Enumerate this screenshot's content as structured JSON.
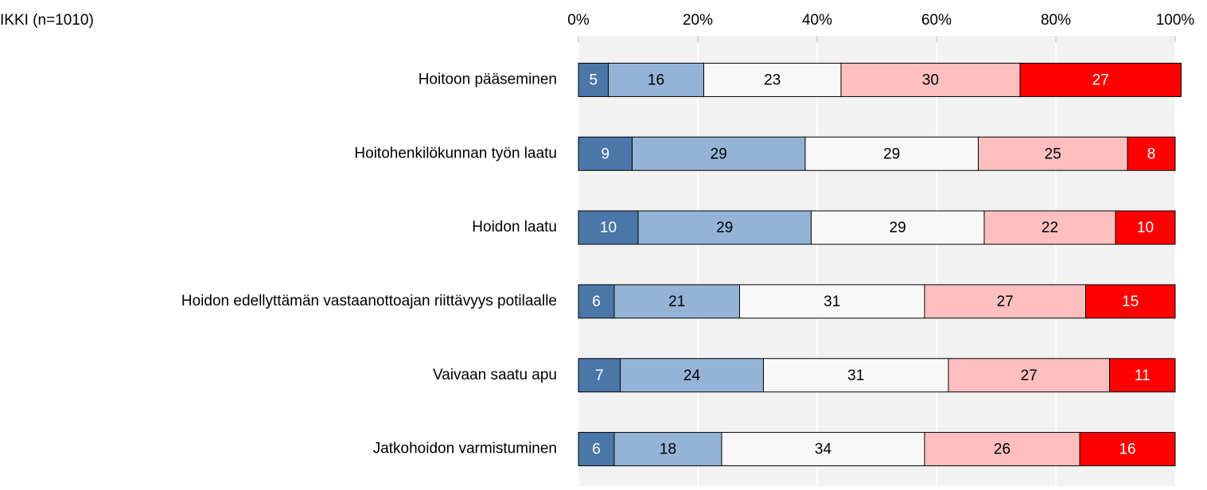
{
  "chart_data": {
    "type": "stacked_barh",
    "title": "IKKI (n=1010)",
    "categories": [
      "Hoitoon pääseminen",
      "Hoitohenkilökunnan työn laatu",
      "Hoidon laatu",
      "Hoidon edellyttämän vastaanottoajan riittävyys potilaalle",
      "Vaivaan saatu apu",
      "Jatkohoidon varmistuminen"
    ],
    "series": [
      {
        "color": "#4a76a8",
        "label_color": "#ffffff",
        "values": [
          5,
          9,
          10,
          6,
          7,
          6
        ]
      },
      {
        "color": "#95b3d7",
        "label_color": "#000000",
        "values": [
          16,
          29,
          29,
          21,
          24,
          18
        ]
      },
      {
        "color": "#f8f8f8",
        "label_color": "#000000",
        "values": [
          23,
          29,
          29,
          31,
          31,
          34
        ]
      },
      {
        "color": "#ffbfbf",
        "label_color": "#000000",
        "values": [
          30,
          25,
          22,
          27,
          27,
          26
        ]
      },
      {
        "color": "#ff0000",
        "label_color": "#ffffff",
        "values": [
          27,
          8,
          10,
          15,
          11,
          16
        ]
      }
    ],
    "xlim": [
      0,
      100
    ],
    "xticks": [
      {
        "value": 0,
        "label": "0%"
      },
      {
        "value": 20,
        "label": "20%"
      },
      {
        "value": 40,
        "label": "40%"
      },
      {
        "value": 60,
        "label": "60%"
      },
      {
        "value": 80,
        "label": "80%"
      },
      {
        "value": 100,
        "label": "100%"
      }
    ],
    "grid": true
  }
}
